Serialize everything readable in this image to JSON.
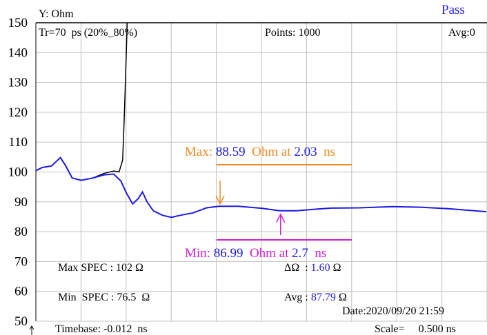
{
  "chart_data": {
    "type": "line",
    "y_label": "Y: Ohm",
    "status": "Pass",
    "header": {
      "rise_time": "Tr=70  ps (20%_80%)",
      "points": "Points: 1000",
      "avg": "Avg:0"
    },
    "xlim": [
      -0.012,
      4.988
    ],
    "xticks": [
      -0.012,
      0.488,
      0.988,
      1.488,
      1.988,
      2.488,
      2.988,
      3.488,
      3.988,
      4.488,
      4.988
    ],
    "ylim": [
      50,
      150
    ],
    "yticks": [
      50,
      60,
      70,
      80,
      90,
      100,
      110,
      120,
      130,
      140,
      150
    ],
    "grid": true,
    "series": [
      {
        "color": "#000000",
        "x": [
          -0.01,
          0.06,
          0.16,
          0.26,
          0.32,
          0.39,
          0.49,
          0.62,
          0.74,
          0.85,
          0.91,
          0.95,
          0.97,
          0.99,
          1.0
        ],
        "values": [
          100.5,
          101.5,
          102,
          104.8,
          102,
          98,
          97.2,
          98,
          99.5,
          100.3,
          100,
          104,
          120,
          140,
          150
        ]
      },
      {
        "color": "#1a1ae6",
        "x": [
          -0.01,
          0.06,
          0.16,
          0.26,
          0.32,
          0.39,
          0.49,
          0.62,
          0.74,
          0.85,
          0.93,
          0.99,
          1.06,
          1.12,
          1.17,
          1.22,
          1.29,
          1.39,
          1.49,
          1.59,
          1.73,
          1.88,
          2.02,
          2.23,
          2.5,
          2.69,
          2.88,
          3.11,
          3.26,
          3.57,
          3.95,
          4.25,
          4.56,
          4.98
        ],
        "values": [
          100.5,
          101.5,
          102,
          104.8,
          102,
          98,
          97.2,
          98,
          99,
          99.3,
          97,
          93,
          89.3,
          91,
          93.3,
          90,
          87,
          85.5,
          84.8,
          85.5,
          86.3,
          88,
          88.5,
          88.5,
          87.8,
          87,
          87,
          87.6,
          87.9,
          88,
          88.4,
          88.2,
          87.7,
          86.7
        ]
      }
    ],
    "annotations": {
      "max": {
        "prefix": "Max:",
        "value": 88.59,
        "unit": "Ohm at",
        "x": 2.03,
        "x_unit": "ns",
        "color": "#f08a24"
      },
      "min": {
        "prefix": "Min:",
        "value": 86.99,
        "unit": "Ohm at",
        "x": 2.7,
        "x_unit": "ns",
        "color": "#d21ed2"
      }
    },
    "info": {
      "max_spec": "Max SPEC : 102 Ω",
      "min_spec": "Min  SPEC : 76.5  Ω",
      "delta": {
        "label": "ΔΩ  :",
        "value": "1.60",
        "unit": "Ω"
      },
      "avg": {
        "label": "Avg :",
        "value": 87.79,
        "unit": "Ω"
      },
      "date": "Date:2020/09/20 21:59",
      "timebase": "Timebase: -0.012  ns",
      "scale": "Scale=     0.500 ns"
    }
  }
}
